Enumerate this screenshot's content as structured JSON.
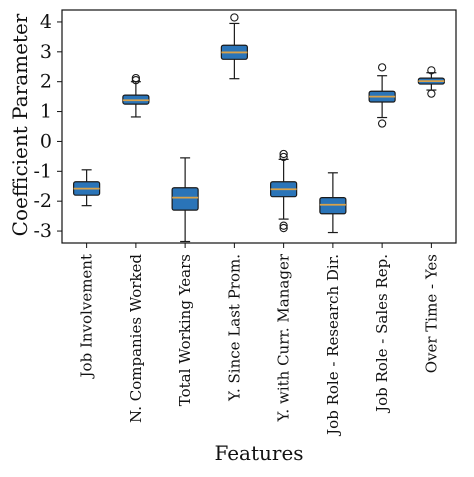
{
  "chart_data": {
    "type": "box",
    "xlabel": "Features",
    "ylabel": "Coefficient Parameter",
    "ylim": [
      -3.4,
      4.4
    ],
    "yticks": [
      4,
      3,
      2,
      1,
      0,
      -1,
      -2,
      -3
    ],
    "ytick_labels": [
      "4",
      "3",
      "2",
      "1",
      "0",
      "-1",
      "-2",
      "-3"
    ],
    "grid": false,
    "colors": {
      "box_fill": "#2a74b8",
      "box_edge": "#1a1a1a",
      "median": "#d9a24a",
      "axis": "#111111"
    },
    "categories": [
      "Job Involvement",
      "N. Companies Worked",
      "Total Working Years",
      "Y. Since Last Prom.",
      "Y. with Curr. Manager",
      "Job Role - Research Dir.",
      "Job Role - Sales Rep.",
      "Over Time - Yes"
    ],
    "boxes": [
      {
        "q1": -1.8,
        "median": -1.58,
        "q3": -1.35,
        "whisker_low": -2.15,
        "whisker_high": -0.95,
        "outliers": []
      },
      {
        "q1": 1.25,
        "median": 1.38,
        "q3": 1.55,
        "whisker_low": 0.82,
        "whisker_high": 2.0,
        "outliers": [
          2.05,
          2.12
        ]
      },
      {
        "q1": -2.3,
        "median": -1.88,
        "q3": -1.55,
        "whisker_low": -3.35,
        "whisker_high": -0.55,
        "outliers": []
      },
      {
        "q1": 2.75,
        "median": 2.98,
        "q3": 3.22,
        "whisker_low": 2.1,
        "whisker_high": 3.95,
        "outliers": [
          4.15
        ]
      },
      {
        "q1": -1.85,
        "median": -1.6,
        "q3": -1.35,
        "whisker_low": -2.6,
        "whisker_high": -0.6,
        "outliers": [
          -0.42,
          -0.52,
          -2.82,
          -2.9
        ]
      },
      {
        "q1": -2.42,
        "median": -2.12,
        "q3": -1.88,
        "whisker_low": -3.05,
        "whisker_high": -1.05,
        "outliers": []
      },
      {
        "q1": 1.32,
        "median": 1.5,
        "q3": 1.68,
        "whisker_low": 0.8,
        "whisker_high": 2.2,
        "outliers": [
          2.48,
          0.6
        ]
      },
      {
        "q1": 1.92,
        "median": 2.02,
        "q3": 2.12,
        "whisker_low": 1.72,
        "whisker_high": 2.3,
        "outliers": [
          2.38,
          1.6
        ]
      }
    ]
  }
}
